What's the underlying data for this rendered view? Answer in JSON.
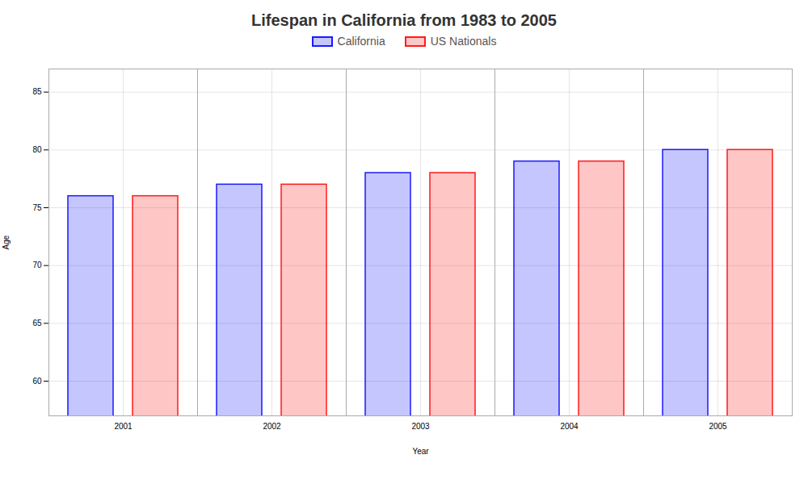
{
  "chart_data": {
    "type": "bar",
    "title": "Lifespan in California from 1983 to 2005",
    "xlabel": "Year",
    "ylabel": "Age",
    "categories": [
      "2001",
      "2002",
      "2003",
      "2004",
      "2005"
    ],
    "series": [
      {
        "name": "California",
        "color": "#1a1aff",
        "values": [
          76.0,
          77.0,
          78.0,
          79.0,
          80.0
        ]
      },
      {
        "name": "US Nationals",
        "color": "#ff1a1a",
        "values": [
          76.0,
          77.0,
          78.0,
          79.0,
          80.0
        ]
      }
    ],
    "ylim": [
      57,
      87
    ],
    "yticks": [
      60,
      65,
      70,
      75,
      80,
      85
    ],
    "grid": true,
    "legend": "top"
  }
}
